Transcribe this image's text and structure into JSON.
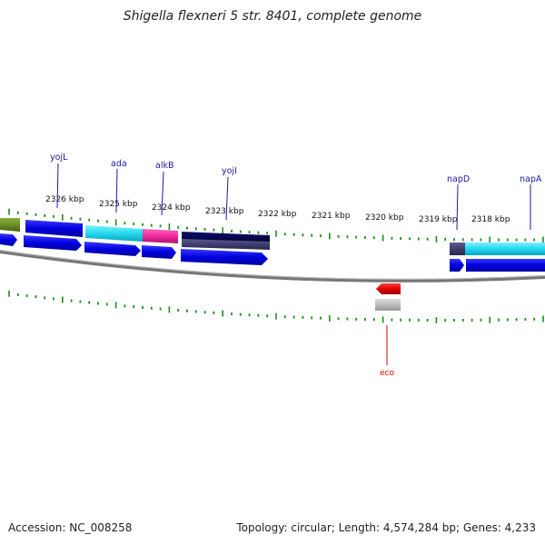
{
  "title": "Shigella flexneri 5 str. 8401, complete genome",
  "footer": {
    "accession": "Accession: NC_008258",
    "summary": "Topology: circular; Length: 4,574,284 bp; Genes: 4,233"
  },
  "colors": {
    "backbone": "#888888",
    "tick": "#1e8c1e",
    "gene_label": "#1a1aa8",
    "eco_label": "#e00000"
  },
  "scale": {
    "unit": "kbp",
    "tick_labels": [
      "2326 kbp",
      "2325 kbp",
      "2324 kbp",
      "2323 kbp",
      "2322 kbp",
      "2321 kbp",
      "2320 kbp",
      "2319 kbp",
      "2318 kbp"
    ]
  },
  "genes_top": [
    {
      "name": "yojL"
    },
    {
      "name": "ada"
    },
    {
      "name": "alkB"
    },
    {
      "name": "yojI"
    },
    {
      "name": "napD"
    },
    {
      "name": "napA"
    }
  ],
  "features": {
    "eco_label": "eco"
  }
}
